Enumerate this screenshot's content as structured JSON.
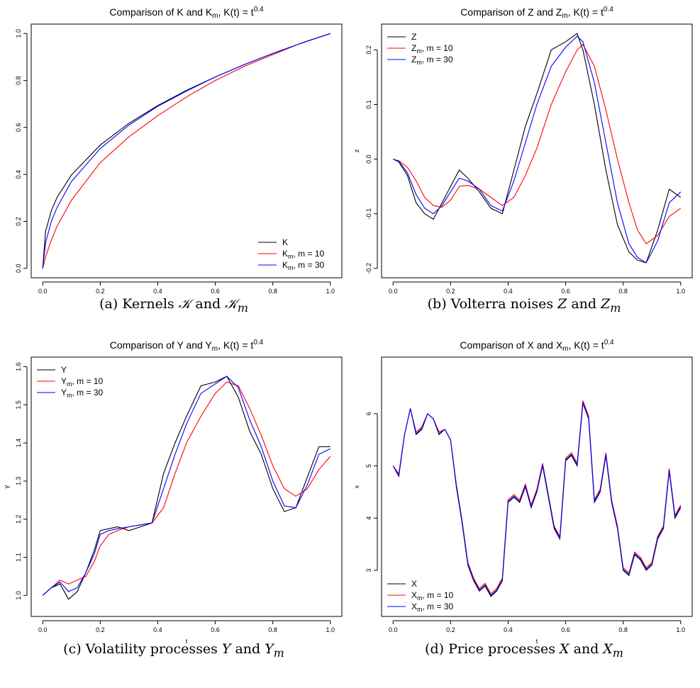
{
  "figure": {
    "panels": [
      {
        "caption_prefix": "(a) Kernels ",
        "caption_a": "𝒦",
        "caption_mid": " and ",
        "caption_b": "𝒦",
        "caption_sub": "m"
      },
      {
        "caption_prefix": "(b) Volterra noises ",
        "caption_a": "Z",
        "caption_mid": " and ",
        "caption_b": "Z",
        "caption_sub": "m"
      },
      {
        "caption_prefix": "(c) Volatility processes ",
        "caption_a": "Y",
        "caption_mid": " and ",
        "caption_b": "Y",
        "caption_sub": "m"
      },
      {
        "caption_prefix": "(d) Price processes ",
        "caption_a": "X",
        "caption_mid": " and ",
        "caption_b": "X",
        "caption_sub": "m"
      }
    ]
  },
  "colors": {
    "exact": "#000000",
    "m10": "#ff0000",
    "m30": "#0000ff"
  },
  "chart_data": [
    {
      "type": "line",
      "title_main": "Comparison of K and K",
      "title_sub": "m",
      "title_tail": ", K(t) = t",
      "title_sup": "0.4",
      "xlabel": "t",
      "ylabel": "",
      "xlim": [
        0,
        1
      ],
      "ylim": [
        0,
        1
      ],
      "xticks": [
        "0.0",
        "0.2",
        "0.4",
        "0.6",
        "0.8",
        "1.0"
      ],
      "yticks": [
        "0.0",
        "0.2",
        "0.4",
        "0.6",
        "0.8",
        "1.0"
      ],
      "legend_position": "bottom-right",
      "legend": [
        {
          "label": "K",
          "sub": "",
          "tail": ""
        },
        {
          "label": "K",
          "sub": "m",
          "tail": ", m = 10"
        },
        {
          "label": "K",
          "sub": "m",
          "tail": ", m = 30"
        }
      ],
      "x": [
        0,
        0.01,
        0.03,
        0.05,
        0.1,
        0.2,
        0.3,
        0.4,
        0.5,
        0.6,
        0.7,
        0.8,
        0.9,
        1.0
      ],
      "series": [
        {
          "values": [
            0,
            0.158,
            0.246,
            0.302,
            0.398,
            0.525,
            0.618,
            0.693,
            0.758,
            0.815,
            0.867,
            0.915,
            0.959,
            1.0
          ]
        },
        {
          "values": [
            0,
            0.05,
            0.12,
            0.18,
            0.29,
            0.45,
            0.56,
            0.65,
            0.73,
            0.8,
            0.86,
            0.91,
            0.96,
            1.0
          ]
        },
        {
          "values": [
            0,
            0.11,
            0.2,
            0.26,
            0.37,
            0.51,
            0.61,
            0.69,
            0.755,
            0.815,
            0.867,
            0.915,
            0.959,
            1.0
          ]
        }
      ]
    },
    {
      "type": "line",
      "title_main": "Comparison of Z and Z",
      "title_sub": "m",
      "title_tail": ", K(t) = t",
      "title_sup": "0.4",
      "xlabel": "t",
      "ylabel": "z",
      "xlim": [
        0,
        1
      ],
      "ylim": [
        -0.2,
        0.23
      ],
      "xticks": [
        "0.0",
        "0.2",
        "0.4",
        "0.6",
        "0.8",
        "1.0"
      ],
      "yticks": [
        "-0.2",
        "-0.1",
        "0.0",
        "0.1",
        "0.2"
      ],
      "legend_position": "top-left",
      "legend": [
        {
          "label": "Z",
          "sub": "",
          "tail": ""
        },
        {
          "label": "Z",
          "sub": "m",
          "tail": ", m = 10"
        },
        {
          "label": "Z",
          "sub": "m",
          "tail": ", m = 30"
        }
      ],
      "x": [
        0,
        0.02,
        0.05,
        0.08,
        0.11,
        0.14,
        0.17,
        0.2,
        0.23,
        0.26,
        0.3,
        0.34,
        0.38,
        0.42,
        0.46,
        0.5,
        0.55,
        0.6,
        0.64,
        0.66,
        0.7,
        0.74,
        0.78,
        0.82,
        0.85,
        0.88,
        0.92,
        0.96,
        1.0
      ],
      "series": [
        {
          "values": [
            0,
            -0.005,
            -0.03,
            -0.08,
            -0.1,
            -0.11,
            -0.08,
            -0.05,
            -0.02,
            -0.035,
            -0.06,
            -0.09,
            -0.1,
            -0.02,
            0.06,
            0.12,
            0.2,
            0.215,
            0.23,
            0.2,
            0.1,
            -0.02,
            -0.12,
            -0.17,
            -0.185,
            -0.19,
            -0.13,
            -0.055,
            -0.07
          ]
        },
        {
          "values": [
            0,
            -0.003,
            -0.015,
            -0.04,
            -0.07,
            -0.085,
            -0.088,
            -0.075,
            -0.05,
            -0.048,
            -0.055,
            -0.07,
            -0.085,
            -0.07,
            -0.03,
            0.02,
            0.1,
            0.16,
            0.2,
            0.21,
            0.17,
            0.09,
            0.0,
            -0.08,
            -0.13,
            -0.155,
            -0.14,
            -0.105,
            -0.09
          ]
        },
        {
          "values": [
            0,
            -0.004,
            -0.025,
            -0.065,
            -0.09,
            -0.1,
            -0.085,
            -0.06,
            -0.035,
            -0.04,
            -0.055,
            -0.085,
            -0.095,
            -0.04,
            0.03,
            0.1,
            0.17,
            0.205,
            0.225,
            0.215,
            0.14,
            0.03,
            -0.08,
            -0.155,
            -0.18,
            -0.19,
            -0.15,
            -0.08,
            -0.06
          ]
        }
      ]
    },
    {
      "type": "line",
      "title_main": "Comparison of Y and Y",
      "title_sub": "m",
      "title_tail": ", K(t) = t",
      "title_sup": "0.4",
      "xlabel": "t",
      "ylabel": "y",
      "xlim": [
        0,
        1
      ],
      "ylim": [
        0.97,
        1.6
      ],
      "xticks": [
        "0.0",
        "0.2",
        "0.4",
        "0.6",
        "0.8",
        "1.0"
      ],
      "yticks": [
        "1.0",
        "1.1",
        "1.2",
        "1.3",
        "1.4",
        "1.5",
        "1.6"
      ],
      "legend_position": "top-left",
      "legend": [
        {
          "label": "Y",
          "sub": "",
          "tail": ""
        },
        {
          "label": "Y",
          "sub": "m",
          "tail": ", m = 10"
        },
        {
          "label": "Y",
          "sub": "m",
          "tail": ", m = 30"
        }
      ],
      "x": [
        0,
        0.03,
        0.06,
        0.09,
        0.12,
        0.15,
        0.18,
        0.2,
        0.23,
        0.26,
        0.3,
        0.34,
        0.38,
        0.42,
        0.46,
        0.5,
        0.55,
        0.6,
        0.64,
        0.68,
        0.72,
        0.76,
        0.8,
        0.84,
        0.88,
        0.92,
        0.96,
        1.0
      ],
      "series": [
        {
          "values": [
            1.0,
            1.02,
            1.03,
            0.99,
            1.01,
            1.06,
            1.12,
            1.17,
            1.175,
            1.18,
            1.17,
            1.18,
            1.19,
            1.32,
            1.4,
            1.47,
            1.55,
            1.56,
            1.575,
            1.52,
            1.43,
            1.37,
            1.28,
            1.22,
            1.23,
            1.31,
            1.39,
            1.39
          ]
        },
        {
          "values": [
            1.0,
            1.02,
            1.04,
            1.03,
            1.04,
            1.05,
            1.09,
            1.13,
            1.16,
            1.17,
            1.18,
            1.185,
            1.19,
            1.23,
            1.32,
            1.4,
            1.47,
            1.53,
            1.56,
            1.55,
            1.49,
            1.42,
            1.34,
            1.28,
            1.26,
            1.28,
            1.33,
            1.365
          ]
        },
        {
          "values": [
            1.0,
            1.02,
            1.035,
            1.01,
            1.02,
            1.06,
            1.11,
            1.16,
            1.17,
            1.175,
            1.18,
            1.185,
            1.19,
            1.28,
            1.37,
            1.45,
            1.53,
            1.555,
            1.575,
            1.545,
            1.46,
            1.39,
            1.3,
            1.235,
            1.23,
            1.29,
            1.37,
            1.385
          ]
        }
      ]
    },
    {
      "type": "line",
      "title_main": "Comparison of X and X",
      "title_sub": "m",
      "title_tail": ", K(t) = t",
      "title_sup": "0.4",
      "xlabel": "t",
      "ylabel": "x",
      "xlim": [
        0,
        1
      ],
      "ylim": [
        2.3,
        6.9
      ],
      "xticks": [
        "0.0",
        "0.2",
        "0.4",
        "0.6",
        "0.8",
        "1.0"
      ],
      "yticks": [
        "3",
        "4",
        "5",
        "6"
      ],
      "legend_position": "bottom-left",
      "legend": [
        {
          "label": "X",
          "sub": "",
          "tail": ""
        },
        {
          "label": "X",
          "sub": "m",
          "tail": ", m = 10"
        },
        {
          "label": "X",
          "sub": "m",
          "tail": ", m = 30"
        }
      ],
      "x": [
        0,
        0.02,
        0.04,
        0.06,
        0.08,
        0.1,
        0.12,
        0.14,
        0.16,
        0.18,
        0.2,
        0.22,
        0.24,
        0.26,
        0.28,
        0.3,
        0.32,
        0.34,
        0.36,
        0.38,
        0.4,
        0.42,
        0.44,
        0.46,
        0.48,
        0.5,
        0.52,
        0.54,
        0.56,
        0.58,
        0.6,
        0.62,
        0.64,
        0.66,
        0.68,
        0.7,
        0.72,
        0.74,
        0.76,
        0.78,
        0.8,
        0.82,
        0.84,
        0.86,
        0.88,
        0.9,
        0.92,
        0.94,
        0.96,
        0.98,
        1.0
      ],
      "series": [
        {
          "values": [
            5.0,
            4.8,
            5.6,
            6.1,
            5.6,
            5.7,
            6.0,
            5.9,
            5.6,
            5.7,
            5.5,
            4.6,
            3.9,
            3.1,
            2.8,
            2.6,
            2.7,
            2.5,
            2.6,
            2.8,
            4.3,
            4.4,
            4.3,
            4.6,
            4.2,
            4.5,
            5.0,
            4.4,
            3.8,
            3.6,
            5.1,
            5.2,
            5.0,
            6.2,
            5.9,
            4.3,
            4.5,
            5.2,
            4.3,
            3.8,
            3.0,
            2.9,
            3.3,
            3.2,
            3.0,
            3.1,
            3.6,
            3.8,
            4.9,
            4.0,
            4.2
          ]
        },
        {
          "values": [
            5.0,
            4.85,
            5.6,
            6.1,
            5.65,
            5.75,
            6.0,
            5.9,
            5.65,
            5.7,
            5.5,
            4.65,
            3.95,
            3.15,
            2.85,
            2.65,
            2.75,
            2.55,
            2.65,
            2.85,
            4.35,
            4.45,
            4.35,
            4.65,
            4.25,
            4.55,
            5.05,
            4.45,
            3.85,
            3.65,
            5.15,
            5.25,
            5.05,
            6.25,
            5.95,
            4.35,
            4.55,
            5.25,
            4.35,
            3.85,
            3.05,
            2.95,
            3.35,
            3.25,
            3.05,
            3.15,
            3.65,
            3.85,
            4.95,
            4.05,
            4.25
          ]
        },
        {
          "values": [
            5.0,
            4.82,
            5.6,
            6.1,
            5.62,
            5.72,
            6.0,
            5.9,
            5.62,
            5.7,
            5.5,
            4.62,
            3.92,
            3.12,
            2.82,
            2.62,
            2.72,
            2.52,
            2.62,
            2.82,
            4.32,
            4.42,
            4.32,
            4.62,
            4.22,
            4.52,
            5.02,
            4.42,
            3.82,
            3.62,
            5.12,
            5.22,
            5.02,
            6.22,
            5.92,
            4.32,
            4.52,
            5.22,
            4.32,
            3.82,
            3.02,
            2.92,
            3.32,
            3.22,
            3.02,
            3.12,
            3.62,
            3.82,
            4.92,
            4.02,
            4.22
          ]
        }
      ]
    }
  ]
}
